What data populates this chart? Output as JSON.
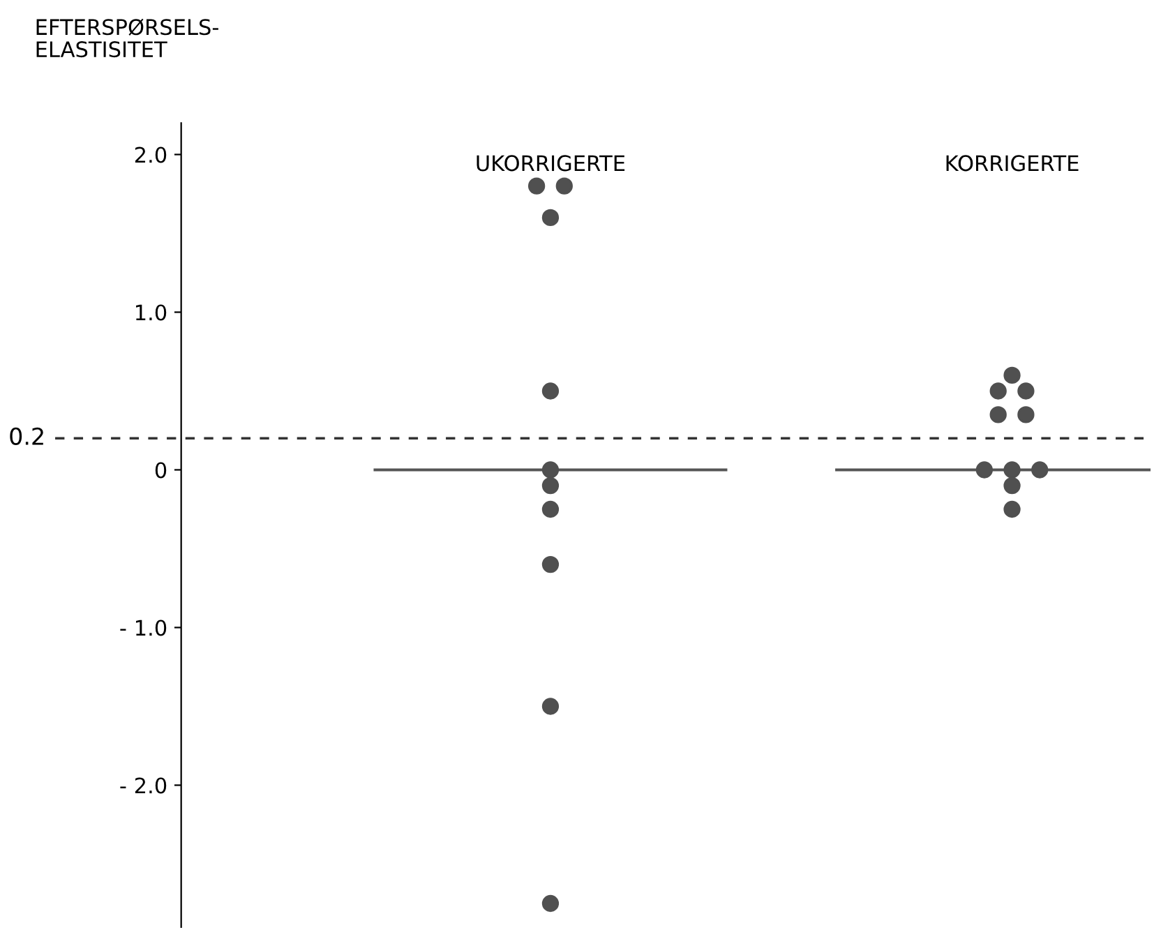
{
  "chart_data": {
    "type": "scatter",
    "ylabel": "EFTERSPØRSELS-\nELASTISITET",
    "categories": [
      "UKORRIGERTE",
      "KORRIGERTE"
    ],
    "series": [
      {
        "color": "#505050",
        "x": [
          "UKORRIGERTE",
          "UKORRIGERTE",
          "UKORRIGERTE",
          "UKORRIGERTE",
          "UKORRIGERTE",
          "UKORRIGERTE",
          "UKORRIGERTE",
          "UKORRIGERTE",
          "UKORRIGERTE",
          "UKORRIGERTE"
        ],
        "values": [
          1.8,
          1.8,
          1.6,
          0.5,
          0,
          -0.1,
          -0.25,
          -0.6,
          -1.5,
          -2.75
        ]
      },
      {
        "color": "#505050",
        "x": [
          "KORRIGERTE",
          "KORRIGERTE",
          "KORRIGERTE",
          "KORRIGERTE",
          "KORRIGERTE",
          "KORRIGERTE",
          "KORRIGERTE",
          "KORRIGERTE",
          "KORRIGERTE",
          "KORRIGERTE"
        ],
        "values": [
          0.6,
          0.5,
          0.5,
          0.35,
          0.35,
          0,
          0,
          0,
          -0.1,
          -0.25
        ]
      }
    ],
    "ylim": [
      -2.9,
      2.2
    ],
    "yticks": [
      {
        "value": 2,
        "label": "2.0"
      },
      {
        "value": 1,
        "label": "1.0"
      },
      0,
      {
        "value": -1,
        "label": "- 1.0"
      },
      {
        "value": -2,
        "label": "- 2.0"
      }
    ],
    "ref_lines": [
      {
        "axis": "y",
        "value": 0.2,
        "label": "0.2",
        "line_style": "dashed",
        "color": "#333333"
      },
      {
        "axis": "y",
        "value": 0,
        "line_style": "solid",
        "color": "#555555"
      }
    ],
    "marker": "circle",
    "grid": false,
    "legend": false
  }
}
